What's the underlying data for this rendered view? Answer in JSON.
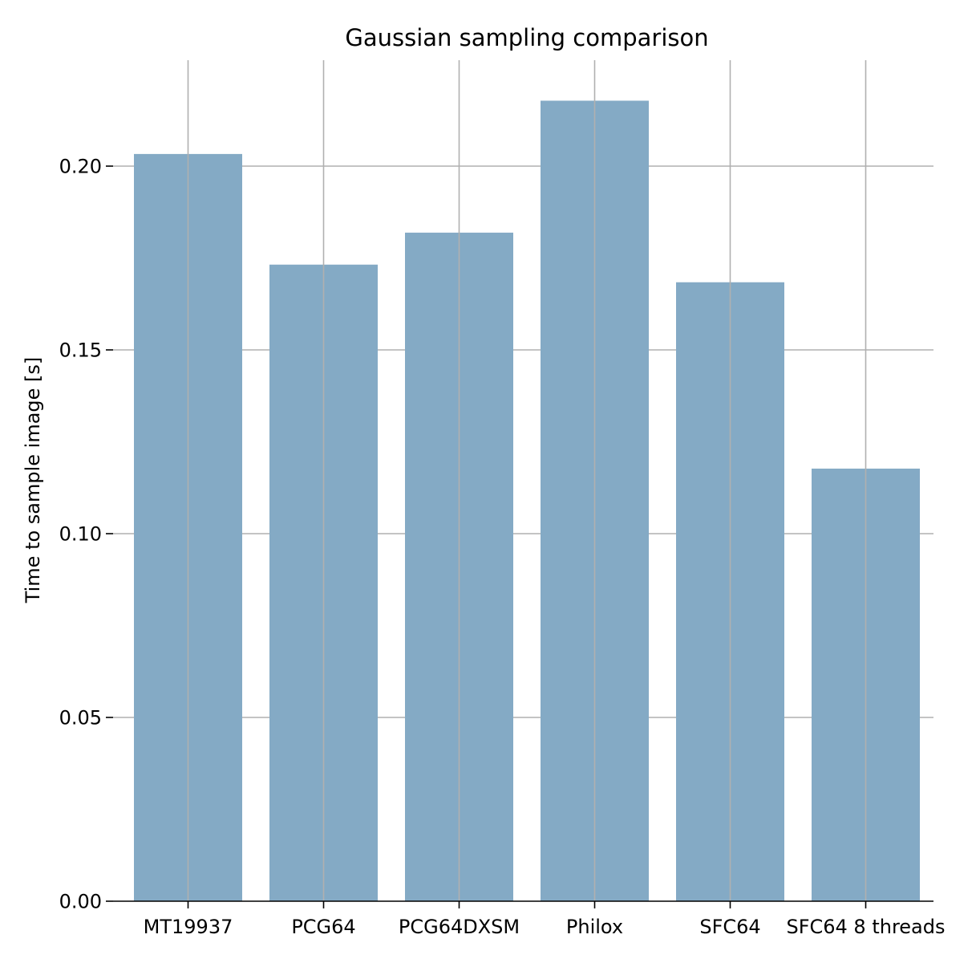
{
  "chart_data": {
    "type": "bar",
    "title": "Gaussian sampling comparison",
    "xlabel": "",
    "ylabel": "Time to sample image [s]",
    "categories": [
      "MT19937",
      "PCG64",
      "PCG64DXSM",
      "Philox",
      "SFC64",
      "SFC64 8 threads"
    ],
    "values": [
      0.2033,
      0.1732,
      0.1819,
      0.2178,
      0.1684,
      0.1177
    ],
    "ylim": [
      0,
      0.229
    ],
    "yticks": [
      0.0,
      0.05,
      0.1,
      0.15,
      0.2
    ],
    "ytick_labels": [
      "0.00",
      "0.05",
      "0.10",
      "0.15",
      "0.20"
    ],
    "grid": true,
    "legend": "none",
    "bar_color": "#84aac5",
    "grid_color": "#b0b0b0"
  }
}
